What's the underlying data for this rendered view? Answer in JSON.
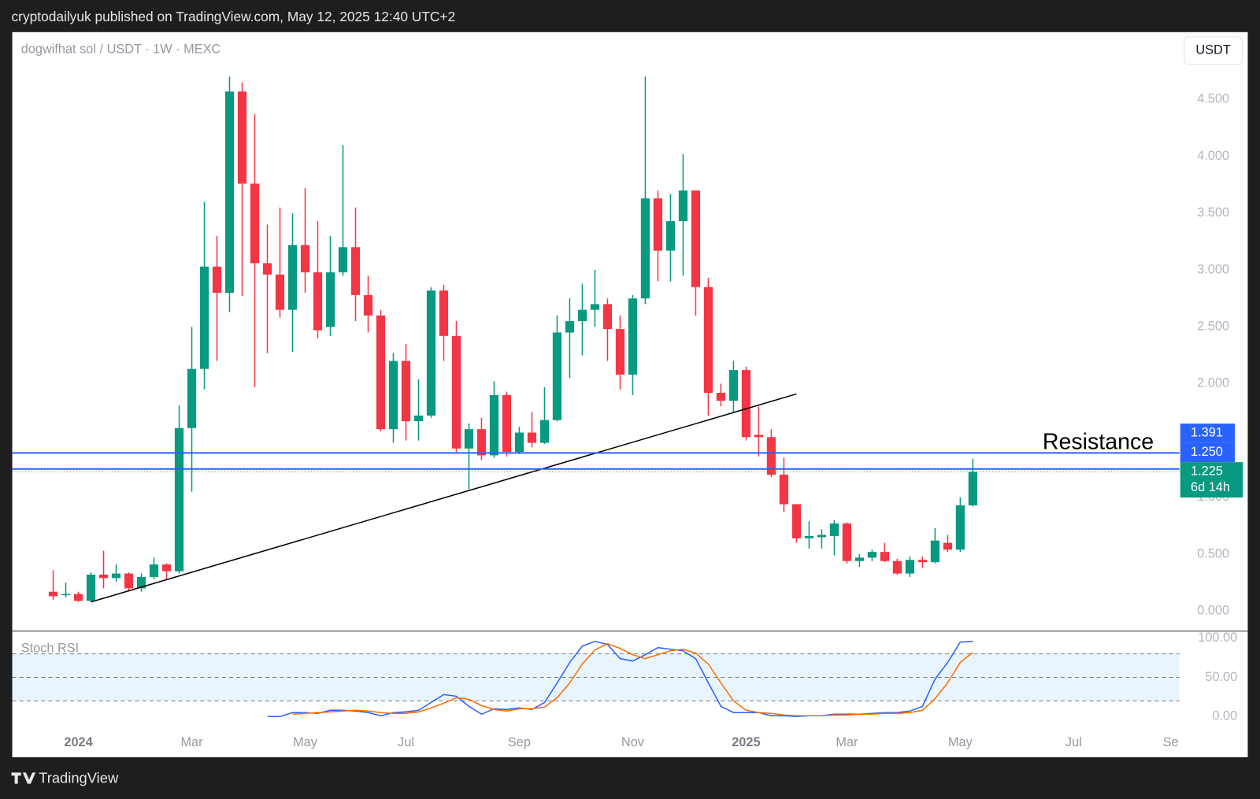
{
  "header": {
    "published": "cryptodailyuk published on TradingView.com, May 12, 2025 12:40 UTC+2",
    "symbol": "dogwifhat sol / USDT · 1W · MEXC",
    "currency": "USDT",
    "brand": "TradingView"
  },
  "chart_data": [
    {
      "type": "candlestick",
      "up_color": "#089981",
      "down_color": "#f23645",
      "x": [
        0,
        1,
        2,
        3,
        4,
        5,
        6,
        7,
        8,
        9,
        10,
        11,
        12,
        13,
        14,
        15,
        16,
        17,
        18,
        19,
        20,
        21,
        22,
        23,
        24,
        25,
        26,
        27,
        28,
        29,
        30,
        31,
        32,
        33,
        34,
        35,
        36,
        37,
        38,
        39,
        40,
        41,
        42,
        43,
        44,
        45,
        46,
        47,
        48,
        49,
        50,
        51,
        52,
        53,
        54,
        55,
        56,
        57,
        58,
        59,
        60,
        61,
        62,
        63,
        64,
        65,
        66,
        67,
        68,
        69,
        70,
        71,
        72,
        73
      ],
      "open": [
        0.17,
        0.14,
        0.15,
        0.09,
        0.32,
        0.29,
        0.33,
        0.2,
        0.3,
        0.41,
        0.35,
        1.61,
        2.13,
        3.03,
        2.8,
        4.57,
        3.76,
        3.06,
        2.96,
        2.65,
        3.22,
        2.98,
        2.5,
        2.98,
        3.2,
        2.78,
        2.6,
        1.6,
        2.2,
        1.67,
        1.72,
        2.82,
        2.42,
        1.43,
        1.6,
        1.37,
        1.9,
        1.4,
        1.57,
        1.48,
        1.68,
        2.45,
        2.55,
        2.65,
        2.7,
        2.48,
        2.08,
        2.75,
        3.63,
        3.17,
        3.43,
        3.7,
        2.85,
        1.92,
        1.85,
        2.12,
        1.55,
        1.53,
        1.2,
        0.94,
        0.64,
        0.65,
        0.66,
        0.77,
        0.44,
        0.47,
        0.52,
        0.44,
        0.33,
        0.45,
        0.43,
        0.6,
        0.54,
        0.93
      ],
      "high": [
        0.36,
        0.25,
        0.17,
        0.34,
        0.53,
        0.41,
        0.34,
        0.33,
        0.47,
        0.42,
        1.81,
        2.5,
        3.6,
        3.3,
        4.7,
        4.65,
        4.37,
        3.4,
        3.55,
        3.5,
        3.72,
        3.43,
        3.3,
        4.1,
        3.55,
        2.95,
        2.65,
        2.27,
        2.35,
        2.04,
        2.85,
        2.87,
        2.55,
        1.65,
        1.7,
        2.02,
        1.93,
        1.62,
        1.75,
        1.97,
        2.6,
        2.75,
        2.88,
        3.0,
        2.75,
        2.6,
        2.78,
        4.7,
        3.7,
        3.67,
        4.02,
        3.7,
        2.93,
        2.0,
        2.2,
        2.15,
        1.8,
        1.6,
        1.35,
        0.94,
        0.79,
        0.72,
        0.8,
        0.78,
        0.5,
        0.54,
        0.6,
        0.46,
        0.48,
        0.48,
        0.73,
        0.67,
        1.0,
        1.34
      ],
      "low": [
        0.1,
        0.12,
        0.08,
        0.08,
        0.2,
        0.26,
        0.18,
        0.17,
        0.28,
        0.28,
        0.33,
        1.05,
        1.95,
        2.2,
        2.63,
        2.77,
        1.97,
        2.27,
        2.58,
        2.28,
        2.8,
        2.4,
        2.42,
        2.95,
        2.55,
        2.45,
        1.58,
        1.48,
        1.5,
        1.5,
        1.7,
        2.2,
        1.4,
        1.07,
        1.33,
        1.35,
        1.36,
        1.38,
        1.44,
        1.47,
        1.67,
        2.05,
        2.25,
        2.5,
        2.2,
        1.95,
        1.9,
        2.7,
        2.9,
        2.9,
        2.95,
        2.6,
        1.72,
        1.8,
        1.75,
        1.5,
        1.36,
        1.18,
        0.87,
        0.6,
        0.55,
        0.55,
        0.49,
        0.42,
        0.39,
        0.44,
        0.43,
        0.32,
        0.3,
        0.38,
        0.42,
        0.52,
        0.52,
        0.92
      ],
      "close": [
        0.13,
        0.15,
        0.09,
        0.32,
        0.29,
        0.33,
        0.2,
        0.3,
        0.41,
        0.35,
        1.61,
        2.13,
        3.03,
        2.8,
        4.57,
        3.76,
        3.06,
        2.96,
        2.65,
        3.22,
        2.98,
        2.47,
        2.98,
        3.2,
        2.78,
        2.6,
        1.6,
        2.2,
        1.67,
        1.72,
        2.82,
        2.42,
        1.43,
        1.6,
        1.37,
        1.9,
        1.4,
        1.57,
        1.48,
        1.68,
        2.45,
        2.55,
        2.65,
        2.7,
        2.48,
        2.08,
        2.75,
        3.63,
        3.17,
        3.43,
        3.7,
        2.85,
        1.92,
        1.85,
        2.12,
        1.53,
        1.53,
        1.2,
        0.94,
        0.64,
        0.66,
        0.67,
        0.77,
        0.44,
        0.47,
        0.52,
        0.44,
        0.33,
        0.45,
        0.43,
        0.62,
        0.54,
        0.93,
        1.225
      ],
      "xlim": [
        -3.25,
        89.4
      ],
      "xticks": [
        {
          "value": 2,
          "label": "2024"
        },
        {
          "value": 11,
          "label": "Mar"
        },
        {
          "value": 20,
          "label": "May"
        },
        {
          "value": 28,
          "label": "Jul"
        },
        {
          "value": 37,
          "label": "Sep"
        },
        {
          "value": 46,
          "label": "Nov"
        },
        {
          "value": 55,
          "label": "2025"
        },
        {
          "value": 63,
          "label": "Mar"
        },
        {
          "value": 72,
          "label": "May"
        },
        {
          "value": 81,
          "label": "Jul"
        },
        {
          "value": 88.7,
          "label": "Se"
        }
      ],
      "ylim": [
        -0.177,
        5.093
      ],
      "yticks": [
        {
          "value": 0,
          "label": "0.000"
        },
        {
          "value": 0.5,
          "label": "0.500"
        },
        {
          "value": 1,
          "label": "1.000"
        },
        {
          "value": 1.5,
          "label": "1.500"
        },
        {
          "value": 2,
          "label": "2.000"
        },
        {
          "value": 2.5,
          "label": "2.500"
        },
        {
          "value": 3,
          "label": "3.000"
        },
        {
          "value": 3.5,
          "label": "3.500"
        },
        {
          "value": 4,
          "label": "4.000"
        },
        {
          "value": 4.5,
          "label": "4.500"
        }
      ],
      "grid": false,
      "levels": [
        {
          "value": 1.391,
          "label": "1.391"
        },
        {
          "value": 1.25,
          "label": "1.250"
        }
      ],
      "level_color": "#2962ff",
      "annotation": "Resistance",
      "last": {
        "value": 1.225,
        "label": "1.225",
        "countdown": "6d 14h"
      },
      "trendline": {
        "x": [
          3,
          59
        ],
        "y": [
          0.08,
          1.91
        ],
        "color": "#000000"
      }
    },
    {
      "type": "line",
      "title": "Stoch RSI",
      "x": [
        17,
        18,
        19,
        20,
        21,
        22,
        23,
        24,
        25,
        26,
        27,
        28,
        29,
        30,
        31,
        32,
        33,
        34,
        35,
        36,
        37,
        38,
        39,
        40,
        41,
        42,
        43,
        44,
        45,
        46,
        47,
        48,
        49,
        50,
        51,
        52,
        53,
        54,
        55,
        56,
        57,
        58,
        59,
        60,
        61,
        62,
        63,
        64,
        65,
        66,
        67,
        68,
        69,
        70,
        71,
        72,
        73
      ],
      "series": [
        {
          "color": "#2962ff",
          "values": [
            0,
            0,
            5,
            5,
            4,
            8,
            8,
            7,
            5,
            1,
            5,
            6,
            8,
            18,
            28,
            26,
            13,
            3,
            10,
            9,
            11,
            9,
            18,
            43,
            69,
            90,
            96,
            92,
            74,
            71,
            79,
            88,
            86,
            84,
            74,
            43,
            13,
            5,
            5,
            5,
            1,
            1,
            0,
            1,
            1,
            3,
            3,
            3,
            4,
            5,
            5,
            7,
            13,
            48,
            69,
            95,
            96
          ]
        },
        {
          "color": "#ff6d00",
          "values": [
            null,
            null,
            3,
            4,
            5,
            6,
            7,
            8,
            7,
            5,
            4,
            4,
            6,
            11,
            17,
            24,
            22,
            14,
            9,
            7,
            10,
            10,
            12,
            24,
            43,
            67,
            85,
            93,
            87,
            79,
            74,
            79,
            84,
            86,
            81,
            67,
            43,
            20,
            8,
            5,
            4,
            2,
            1,
            1,
            1,
            2,
            2,
            3,
            3,
            4,
            4,
            5,
            8,
            23,
            43,
            69,
            82
          ]
        }
      ],
      "ylim": [
        -13,
        108
      ],
      "yticks": [
        {
          "value": 100,
          "label": "100.00"
        },
        {
          "value": 50,
          "label": "50.00"
        },
        {
          "value": 0,
          "label": "0.00"
        }
      ],
      "bands": [
        20,
        50,
        80
      ]
    }
  ]
}
